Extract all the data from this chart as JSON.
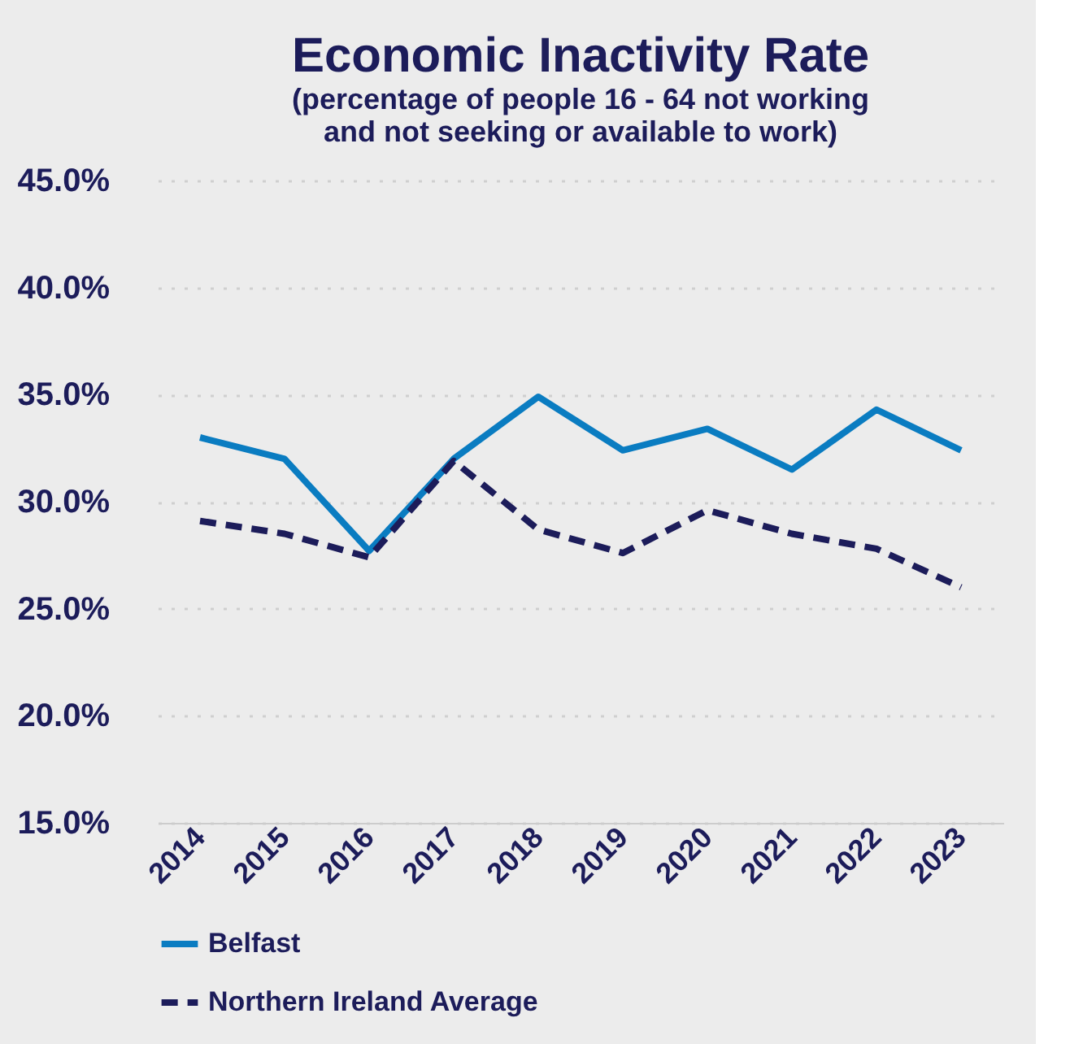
{
  "chart_data": {
    "type": "line",
    "title": "Economic Inactivity Rate",
    "subtitle": [
      "(percentage of people 16 - 64 not working",
      "and not seeking or available to work)"
    ],
    "categories": [
      "2014",
      "2015",
      "2016",
      "2017",
      "2018",
      "2019",
      "2020",
      "2021",
      "2022",
      "2023"
    ],
    "series": [
      {
        "name": "Belfast",
        "color": "#0a7cc1",
        "line_style": "solid",
        "values": [
          33.0,
          32.0,
          27.7,
          32.0,
          34.9,
          32.4,
          33.4,
          31.5,
          34.3,
          32.4
        ]
      },
      {
        "name": "Northern Ireland Average",
        "color": "#1c1c5a",
        "line_style": "dashed",
        "values": [
          29.1,
          28.5,
          27.4,
          31.9,
          28.7,
          27.6,
          29.6,
          28.5,
          27.8,
          26.0
        ]
      }
    ],
    "ylim": [
      15,
      45
    ],
    "yticks": [
      {
        "value": 15,
        "label": "15.0%"
      },
      {
        "value": 20,
        "label": "20.0%"
      },
      {
        "value": 25,
        "label": "25.0%"
      },
      {
        "value": 30,
        "label": "30.0%"
      },
      {
        "value": 35,
        "label": "35.0%"
      },
      {
        "value": 40,
        "label": "40.0%"
      },
      {
        "value": 45,
        "label": "45.0%"
      }
    ],
    "grid": "y",
    "legend": "bottom",
    "marker": "none"
  }
}
